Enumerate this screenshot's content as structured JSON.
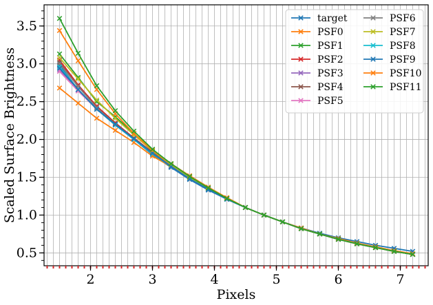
{
  "chart_data": {
    "type": "line",
    "xlabel": "Pixels",
    "ylabel": "Scaled Surface Brightness",
    "xlim": [
      1.25,
      7.45
    ],
    "ylim": [
      0.33,
      3.78
    ],
    "x_ticks": [
      2,
      3,
      4,
      5,
      6,
      7
    ],
    "x_tick_labels": [
      "2",
      "3",
      "4",
      "5",
      "6",
      "7"
    ],
    "y_ticks": [
      0.5,
      1.0,
      1.5,
      2.0,
      2.5,
      3.0,
      3.5
    ],
    "y_tick_labels": [
      "0.5",
      "1.0",
      "1.5",
      "2.0",
      "2.5",
      "3.0",
      "3.5"
    ],
    "grid": true,
    "legend_position": "top-right",
    "legend_columns": 2,
    "marker": "x",
    "minor_x_marks_color": "#d62728",
    "x": [
      1.5,
      1.8,
      2.1,
      2.4,
      2.7,
      3.0,
      3.3,
      3.6,
      3.9,
      4.2,
      4.5,
      4.8,
      5.1,
      5.4,
      5.7,
      6.0,
      6.3,
      6.6,
      6.9,
      7.2
    ],
    "series": [
      {
        "name": "target",
        "color": "#1f77b4",
        "values": [
          2.98,
          2.66,
          2.4,
          2.19,
          2.0,
          1.8,
          1.63,
          1.47,
          1.33,
          1.21,
          1.1,
          1.0,
          0.91,
          0.83,
          0.76,
          0.7,
          0.65,
          0.6,
          0.56,
          0.52
        ]
      },
      {
        "name": "PSF0",
        "color": "#ff7f0e",
        "values": [
          2.68,
          2.48,
          2.28,
          2.12,
          1.96,
          1.78,
          1.64,
          1.51,
          1.36,
          1.23,
          1.1,
          1.0,
          0.91,
          0.83,
          0.75,
          0.69,
          0.63,
          0.58,
          0.53,
          0.49
        ]
      },
      {
        "name": "PSF1",
        "color": "#2ca02c",
        "values": [
          3.13,
          2.82,
          2.5,
          2.3,
          2.08,
          1.84,
          1.67,
          1.5,
          1.35,
          1.22,
          1.1,
          1.0,
          0.91,
          0.82,
          0.75,
          0.68,
          0.62,
          0.57,
          0.52,
          0.48
        ]
      },
      {
        "name": "PSF2",
        "color": "#d62728",
        "values": [
          3.05,
          2.72,
          2.44,
          2.22,
          2.02,
          1.83,
          1.65,
          1.49,
          1.35,
          1.22,
          1.1,
          1.0,
          0.91,
          0.82,
          0.75,
          0.68,
          0.62,
          0.57,
          0.52,
          0.48
        ]
      },
      {
        "name": "PSF3",
        "color": "#9467bd",
        "values": [
          2.92,
          2.65,
          2.4,
          2.19,
          2.0,
          1.82,
          1.64,
          1.48,
          1.34,
          1.21,
          1.1,
          1.0,
          0.91,
          0.82,
          0.75,
          0.68,
          0.62,
          0.57,
          0.52,
          0.48
        ]
      },
      {
        "name": "PSF4",
        "color": "#8c564b",
        "values": [
          3.02,
          2.7,
          2.42,
          2.21,
          2.01,
          1.82,
          1.65,
          1.49,
          1.35,
          1.22,
          1.1,
          1.0,
          0.91,
          0.82,
          0.75,
          0.68,
          0.62,
          0.57,
          0.52,
          0.48
        ]
      },
      {
        "name": "PSF5",
        "color": "#e377c2",
        "values": [
          2.9,
          2.64,
          2.4,
          2.19,
          2.0,
          1.82,
          1.64,
          1.48,
          1.34,
          1.21,
          1.1,
          1.0,
          0.91,
          0.82,
          0.75,
          0.68,
          0.62,
          0.57,
          0.52,
          0.48
        ]
      },
      {
        "name": "PSF6",
        "color": "#7f7f7f",
        "values": [
          3.0,
          2.7,
          2.42,
          2.2,
          2.01,
          1.82,
          1.65,
          1.49,
          1.35,
          1.22,
          1.1,
          1.0,
          0.91,
          0.82,
          0.75,
          0.68,
          0.62,
          0.57,
          0.52,
          0.48
        ]
      },
      {
        "name": "PSF7",
        "color": "#bcbd22",
        "values": [
          3.08,
          2.8,
          2.52,
          2.28,
          2.06,
          1.85,
          1.67,
          1.5,
          1.35,
          1.22,
          1.1,
          1.0,
          0.91,
          0.82,
          0.75,
          0.68,
          0.62,
          0.57,
          0.52,
          0.48
        ]
      },
      {
        "name": "PSF8",
        "color": "#17becf",
        "values": [
          2.96,
          2.66,
          2.4,
          2.19,
          2.0,
          1.81,
          1.64,
          1.48,
          1.34,
          1.21,
          1.1,
          1.0,
          0.91,
          0.82,
          0.75,
          0.68,
          0.62,
          0.57,
          0.52,
          0.48
        ]
      },
      {
        "name": "PSF9",
        "color": "#1f77b4",
        "values": [
          2.94,
          2.66,
          2.4,
          2.2,
          2.01,
          1.82,
          1.64,
          1.48,
          1.34,
          1.21,
          1.1,
          1.0,
          0.91,
          0.82,
          0.75,
          0.68,
          0.62,
          0.57,
          0.52,
          0.48
        ]
      },
      {
        "name": "PSF10",
        "color": "#ff7f0e",
        "values": [
          3.44,
          3.04,
          2.66,
          2.34,
          2.08,
          1.86,
          1.68,
          1.52,
          1.37,
          1.23,
          1.1,
          1.0,
          0.91,
          0.82,
          0.75,
          0.68,
          0.62,
          0.57,
          0.52,
          0.48
        ]
      },
      {
        "name": "PSF11",
        "color": "#2ca02c",
        "values": [
          3.6,
          3.14,
          2.71,
          2.38,
          2.11,
          1.87,
          1.68,
          1.51,
          1.36,
          1.22,
          1.1,
          1.0,
          0.91,
          0.82,
          0.75,
          0.68,
          0.62,
          0.57,
          0.52,
          0.48
        ]
      }
    ]
  }
}
